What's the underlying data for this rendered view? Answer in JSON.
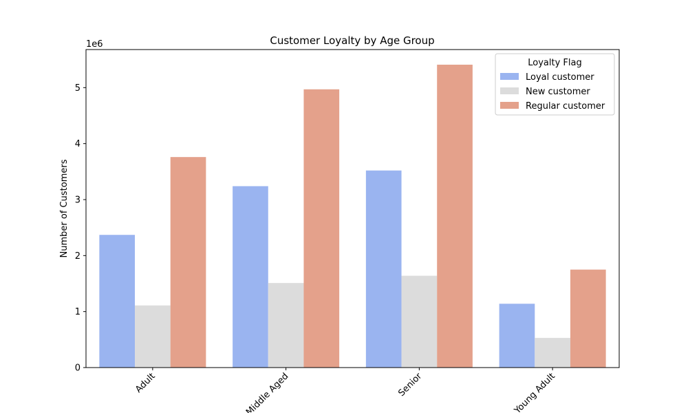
{
  "chart_data": {
    "type": "bar",
    "title": "Customer Loyalty by Age Group",
    "xlabel": "",
    "ylabel": "Number of Customers",
    "y_scale_label": "1e6",
    "ylim": [
      0,
      5.68
    ],
    "yticks": [
      0,
      1,
      2,
      3,
      4,
      5
    ],
    "categories": [
      "Adult",
      "Middle Aged",
      "Senior",
      "Young Adult"
    ],
    "legend": {
      "title": "Loyalty Flag",
      "placement": "top-right"
    },
    "series": [
      {
        "name": "Loyal customer",
        "color": "#9ab4f0",
        "values": [
          2.37,
          3.24,
          3.52,
          1.14
        ]
      },
      {
        "name": "New customer",
        "color": "#dcdcdc",
        "values": [
          1.11,
          1.51,
          1.64,
          0.53
        ]
      },
      {
        "name": "Regular customer",
        "color": "#e4a18b",
        "values": [
          3.76,
          4.97,
          5.41,
          1.75
        ]
      }
    ]
  }
}
